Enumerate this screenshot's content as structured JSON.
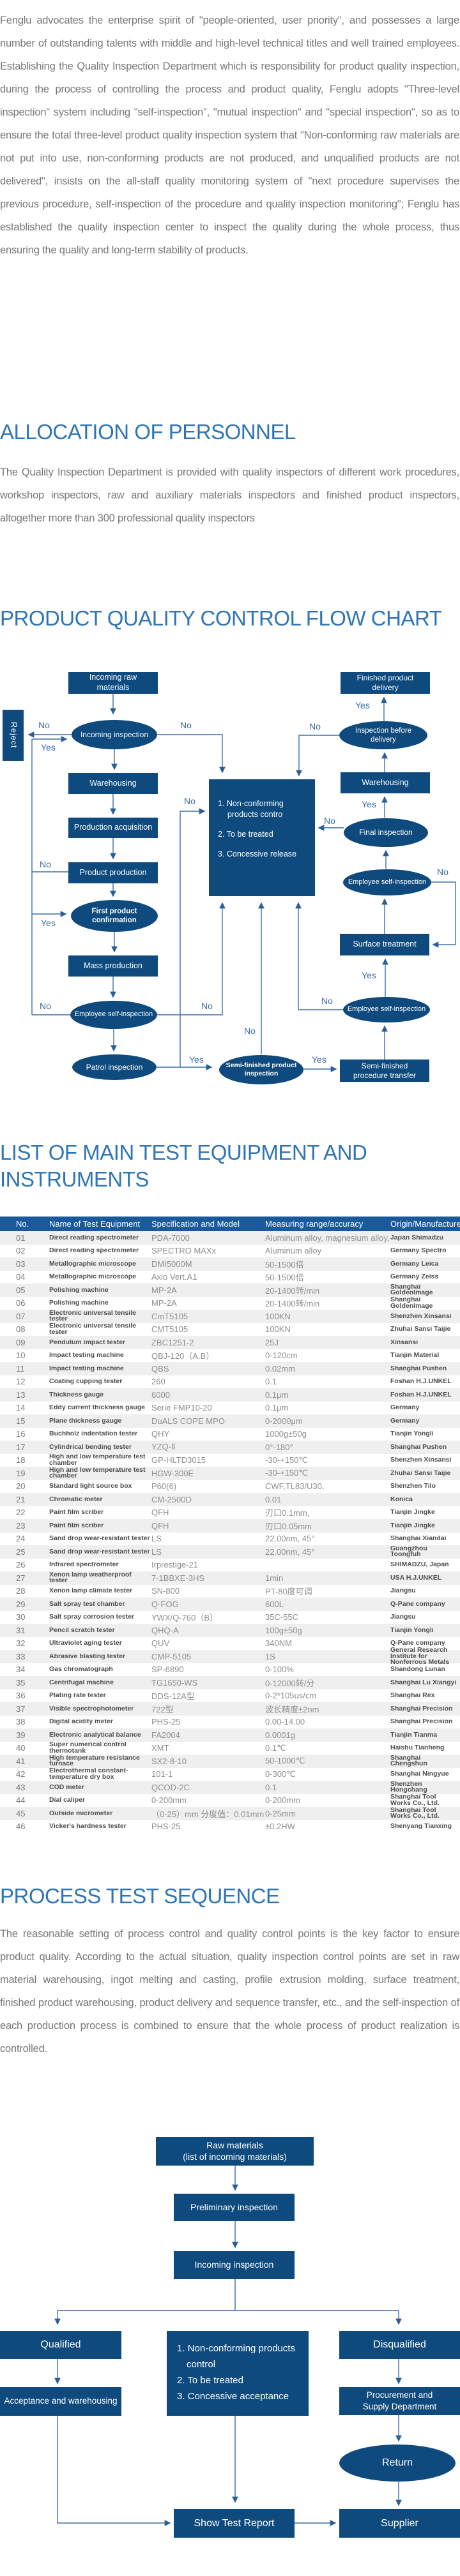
{
  "labels": {
    "yes": "Yes",
    "no": "No"
  },
  "intro": "Fenglu advocates the enterprise spirit of \"people-oriented, user priority\", and possesses a large number of outstanding talents with middle and high-level technical titles and well trained employees. Establishing the Quality Inspection Department which is responsibility for product quality inspection, during the process of controlling the process and product quality, Fenglu adopts  \"Three-level inspection\" system including \"self-inspection\", \"mutual inspection\" and \"special inspection\", so as to ensure the total three-level product quality inspection system that \"Non-conforming raw materials are not put into use, non-conforming products are not produced, and unqualified products are not delivered\", insists on the all-staff quality monitoring system of \"next procedure supervises the previous procedure, self-inspection of the procedure and quality inspection monitoring\"; Fenglu has established the quality inspection center to inspect the quality during the whole process, thus ensuring the quality and long-term stability of products.",
  "personnel": {
    "title": "ALLOCATION OF PERSONNEL",
    "body": "The Quality Inspection Department is provided with quality inspectors of different work procedures, workshop inspectors, raw and auxiliary materials inspectors and finished product inspectors, altogether more than 300 professional quality inspectors"
  },
  "fc1": {
    "title": "PRODUCT QUALITY CONTROL FLOW CHART",
    "nodes": {
      "incoming_raw_materials": "Incoming raw materials",
      "finished_product_delivery": "Finished product delivery",
      "reject": "Reject",
      "incoming_inspection": "Incoming inspection",
      "inspection_before_delivery": "Inspection before delivery",
      "warehousing_left": "Warehousing",
      "warehousing_right": "Warehousing",
      "production_acquisition": "Production acquisition",
      "final_inspection": "Final inspection",
      "product_production": "Product production",
      "employee_self_inspection_upper": "Employee self-inspection",
      "first_product_confirmation": "First product confirmation",
      "surface_treatment": "Surface treatment",
      "mass_production": "Mass production",
      "employee_self_inspection_left": "Employee self-inspection",
      "employee_self_inspection_lower": "Employee self-inspection",
      "patrol_inspection": "Patrol inspection",
      "semi_finished_product_inspection": "Semi-finished product inspection",
      "semi_finished_procedure_transfer": "Semi-finished procedure transfer"
    },
    "box": {
      "lines": [
        "1. Non-conforming products contro",
        "2. To be treated",
        "3. Concessive release"
      ]
    }
  },
  "equipment": {
    "title": "LIST OF MAIN TEST EQUIPMENT AND INSTRUMENTS",
    "columns": [
      "No.",
      "Name of Test Equipment",
      "Specification and Model",
      "Measuring range/accuracy",
      "Origin/Manufacturer"
    ],
    "rows": [
      [
        "01",
        "Direct reading spectrometer",
        "PDA-7000",
        "Aluminum alloy, magnesium alloy, mould steel",
        "Japan Shimadzu"
      ],
      [
        "02",
        "Direct reading spectrometer",
        "SPECTRO MAXx",
        "Aluminum alloy",
        "Germany Spectro"
      ],
      [
        "03",
        "Metallographic microscope",
        "DMI5000M",
        "50-1500倍",
        "Germany Leica"
      ],
      [
        "04",
        "Metallographic microscope",
        "Axio Vert.A1",
        "50-1500倍",
        "Germany Zeiss"
      ],
      [
        "05",
        "Polishing machine",
        "MP-2A",
        "20-1400转/min",
        "Shanghai GoldenImage"
      ],
      [
        "06",
        "Polishing machine",
        "MP-2A",
        "20-1400转/min",
        "Shanghai GoldenImage"
      ],
      [
        "07",
        "Electronic universal tensile tester",
        "CmT5105",
        "100KN",
        "Shenzhen Xinsansi"
      ],
      [
        "08",
        "Electronic universal tensile tester",
        "CMT5105",
        "100KN",
        "Zhuhai Sansi Taijie"
      ],
      [
        "09",
        "Pendulum impact tester",
        "ZBC1251-2",
        "25J",
        "Xinsansi"
      ],
      [
        "10",
        "Impact testing machine",
        "QBJ-120（A.B）",
        "0-120cm",
        "Tianjin Material"
      ],
      [
        "11",
        "Impact testing machine",
        "QBS",
        "0.02mm",
        "Shanghai Pushen"
      ],
      [
        "12",
        "Coating cupping tester",
        "260",
        "0.1",
        "Foshan H.J.UNKEL"
      ],
      [
        "13",
        "Thickness gauge",
        "6000",
        "0.1μm",
        "Foshan H.J.UNKEL"
      ],
      [
        "14",
        "Eddy current thickness gauge",
        "Serie FMP10-20",
        "0.1μm",
        "Germany"
      ],
      [
        "15",
        "Plane thickness gauge",
        "DuALS COPE MPO",
        "0-2000μm",
        "Germany"
      ],
      [
        "16",
        "Buchholz indentation tester",
        "QHY",
        "1000g±50g",
        "Tianjin Yongli"
      ],
      [
        "17",
        "Cylindrical bending tester",
        "YZQ-Ⅱ",
        "0°-180°",
        "Shanghai Pushen"
      ],
      [
        "18",
        "High and low temperature test chamber",
        "GP-HLTD3015",
        "-30-+150℃",
        "Shenzhen Xinsansi"
      ],
      [
        "19",
        "High and low temperature test chamber",
        "HGW-300E",
        "-30-+150℃",
        "Zhuhai Sansi Taijie"
      ],
      [
        "20",
        "Standard light source box",
        "P60(6)",
        "CWF,TL83/U30,",
        "Shenzhen Tilo"
      ],
      [
        "21",
        "Chromatic meter",
        "CM-2500D",
        "0.01",
        "Konica"
      ],
      [
        "22",
        "Paint film scriber",
        "QFH",
        "刃口0.1mm,",
        "Tianjin Jingke"
      ],
      [
        "23",
        "Paint film scriber",
        "QFH",
        "刃口0.05mm",
        "Tianjin Jingke"
      ],
      [
        "24",
        "Sand drop wear-resistant tester",
        "LS",
        "22.00nm, 45°",
        "Shanghai Xiandai"
      ],
      [
        "25",
        "Sand drop wear-resistant tester",
        "LS",
        "22.00nm, 45°",
        "Guangzhou Toongfuh"
      ],
      [
        "26",
        "Infrared spectrometer",
        "Irprestige-21",
        "",
        "SHIMADZU, Japan"
      ],
      [
        "27",
        "Xenon lamp weatherproof tester",
        "7-1BBXE-3HS",
        "1min",
        "USA H.J.UNKEL"
      ],
      [
        "28",
        "Xenon lamp climate tester",
        "SN-800",
        "PT-80度可调",
        "Jiangsu"
      ],
      [
        "29",
        "Salt spray test chamber",
        "Q-FOG",
        "600L",
        "Q-Pane company"
      ],
      [
        "30",
        "Salt spray corrosion tester",
        "YWX/Q-760（B）",
        "35C-55C",
        "Jiangsu"
      ],
      [
        "31",
        "Pencil scratch tester",
        "QHQ-A",
        "100g±50g",
        "Tianjin Yongli"
      ],
      [
        "32",
        "Ultraviolet aging tester",
        "QUV",
        "340NM",
        "Q-Pane company"
      ],
      [
        "33",
        "Abrasive blasting tester",
        "CMP-5105",
        "1S",
        "General Research Institute for Nonferrous Metals"
      ],
      [
        "34",
        "Gas chromatograph",
        "SP-6890",
        "0-100%",
        "Shandong Lunan"
      ],
      [
        "35",
        "Centrifugal machine",
        "TG1650-WS",
        "0-12000转/分",
        "Shanghai Lu Xiangyi"
      ],
      [
        "36",
        "Plating rate tester",
        "DDS-12A型",
        "0-2*105us/cm",
        "Shanghai Rex"
      ],
      [
        "37",
        "Visible spectrophotometer",
        "722型",
        "波长精度±2nm",
        "Shanghai Precision"
      ],
      [
        "38",
        "Digital acidity meter",
        "PHS-25",
        "0.00-14.00",
        "Shanghai Precision"
      ],
      [
        "39",
        "Electronic analytical balance",
        "FA2004",
        "0.0001g",
        "Tianjin Tianma"
      ],
      [
        "40",
        "Super numerical control thermotank",
        "XMT",
        "0.1℃",
        "Haishu Tianheng"
      ],
      [
        "41",
        "High temperature resistance furnace",
        "SX2-8-10",
        "50-1000℃",
        "Shanghai Chengshun"
      ],
      [
        "42",
        "Electrothermal constant-temperature dry box",
        "101-1",
        "0-300℃",
        "Shanghai Ningyue"
      ],
      [
        "43",
        "COD meter",
        "QCOD-2C",
        "0.1",
        "Shenzhen Hongchang"
      ],
      [
        "44",
        "Dial caliper",
        "0-200mm",
        "0-200mm",
        "Shanghai Tool Works Co., Ltd."
      ],
      [
        "45",
        "Outside micrometer",
        "（0-25）mm 分度值：0.01mm",
        "0-25mm",
        "Shanghai Tool Works Co., Ltd."
      ],
      [
        "46",
        "Vicker's hardness tester",
        "PHS-25",
        "±0.2HW",
        "Shenyang Tianxing"
      ]
    ]
  },
  "process": {
    "title": "PROCESS TEST SEQUENCE",
    "body": "The reasonable setting of process control and quality control points is the key factor to ensure product quality. According to the actual situation, quality inspection control points are set in raw material warehousing, ingot melting and casting, profile extrusion molding, surface treatment, finished product warehousing, product delivery and sequence transfer, etc., and the self-inspection of each production process is combined to ensure that the whole process of product realization is controlled.",
    "nodes": {
      "raw_materials": "Raw materials",
      "raw_materials_sub": "(list of incoming materials)",
      "preliminary_inspection": "Preliminary inspection",
      "incoming_inspection": "Incoming inspection",
      "qualified": "Qualified",
      "disqualified": "Disqualified",
      "acceptance_and_warehousing": "Acceptance and warehousing",
      "procurement_and_supply": "Procurement and Supply Department",
      "return": "Return",
      "show_test_report": "Show Test Report",
      "supplier": "Supplier"
    },
    "box": {
      "lines": [
        "1. Non-conforming products control",
        "2. To be treated",
        "3. Concessive acceptance"
      ]
    }
  }
}
